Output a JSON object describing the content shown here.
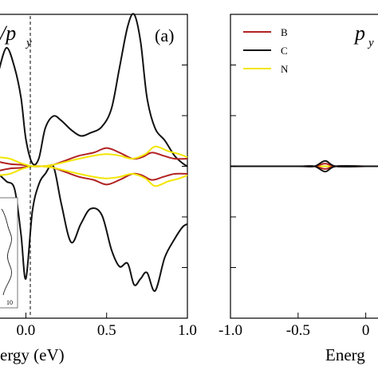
{
  "chart_data": [
    {
      "type": "line",
      "panel_label": "(a)",
      "orbital_label": "/p",
      "orbital_subscript": "y",
      "xlabel": "ergy (eV)",
      "xlim": [
        -0.17,
        1.0
      ],
      "ylim": [
        -1.0,
        1.0
      ],
      "x_ticks": [
        "0.0",
        "0.5",
        "1.0"
      ],
      "x_tick_values": [
        0.0,
        0.5,
        1.0
      ],
      "fermi_level_line": 0.0,
      "series": [
        {
          "name": "C",
          "color": "#111111",
          "x": [
            -0.17,
            -0.12,
            -0.07,
            -0.03,
            0.0,
            0.04,
            0.08,
            0.12,
            0.17,
            0.22,
            0.28,
            0.34,
            0.4,
            0.47,
            0.53,
            0.58,
            0.63,
            0.67,
            0.71,
            0.75,
            0.8,
            0.86,
            0.92,
            0.97,
            1.0
          ],
          "upper": [
            0.62,
            0.78,
            0.65,
            0.45,
            0.18,
            0.02,
            0.05,
            0.25,
            0.33,
            0.3,
            0.24,
            0.2,
            0.22,
            0.26,
            0.38,
            0.65,
            0.92,
            1.0,
            0.82,
            0.45,
            0.25,
            0.17,
            0.07,
            0.02,
            0.0
          ],
          "lower": [
            -0.05,
            -0.1,
            -0.15,
            -0.45,
            -0.74,
            -0.3,
            -0.12,
            -0.05,
            0.0,
            -0.25,
            -0.5,
            -0.38,
            -0.28,
            -0.32,
            -0.55,
            -0.66,
            -0.64,
            -0.78,
            -0.74,
            -0.7,
            -0.82,
            -0.6,
            -0.48,
            -0.4,
            -0.38
          ]
        },
        {
          "name": "B",
          "color": "#b22222",
          "x": [
            -0.17,
            -0.1,
            -0.03,
            0.04,
            0.1,
            0.17,
            0.25,
            0.33,
            0.42,
            0.5,
            0.58,
            0.66,
            0.72,
            0.78,
            0.85,
            0.92,
            1.0
          ],
          "upper": [
            0.03,
            0.015,
            0.01,
            0.0,
            0.0,
            0.01,
            0.04,
            0.07,
            0.09,
            0.12,
            0.09,
            0.05,
            0.06,
            0.09,
            0.07,
            0.05,
            0.05
          ],
          "lower": [
            -0.03,
            -0.015,
            -0.01,
            0.0,
            0.0,
            -0.01,
            -0.04,
            -0.07,
            -0.09,
            -0.12,
            -0.09,
            -0.05,
            -0.06,
            -0.09,
            -0.07,
            -0.05,
            -0.05
          ]
        },
        {
          "name": "N",
          "color": "#f2e600",
          "x": [
            -0.17,
            -0.1,
            -0.03,
            0.04,
            0.1,
            0.17,
            0.25,
            0.33,
            0.42,
            0.5,
            0.58,
            0.66,
            0.74,
            0.8,
            0.88,
            0.95,
            1.0
          ],
          "upper": [
            0.06,
            0.05,
            0.02,
            0.0,
            0.0,
            0.01,
            0.03,
            0.05,
            0.07,
            0.08,
            0.07,
            0.05,
            0.08,
            0.13,
            0.1,
            0.08,
            0.06
          ],
          "lower": [
            -0.06,
            -0.05,
            -0.02,
            0.0,
            0.0,
            -0.01,
            -0.03,
            -0.05,
            -0.07,
            -0.08,
            -0.07,
            -0.05,
            -0.08,
            -0.13,
            -0.1,
            -0.08,
            -0.06
          ]
        }
      ],
      "inset": {
        "tick_label": "10"
      }
    },
    {
      "type": "line",
      "orbital_label": "p",
      "orbital_subscript": "y",
      "xlabel": "Energ",
      "xlim": [
        -1.0,
        0.12
      ],
      "ylim": [
        -1.0,
        1.0
      ],
      "x_ticks": [
        "-1.0",
        "-0.5",
        "0"
      ],
      "x_tick_values": [
        -1.0,
        -0.5,
        0.0
      ],
      "legend": {
        "position": "top-left",
        "entries": [
          {
            "name": "B",
            "color": "#b22222"
          },
          {
            "name": "C",
            "color": "#111111"
          },
          {
            "name": "N",
            "color": "#f2e600"
          }
        ]
      },
      "series": [
        {
          "name": "N",
          "color": "#f2e600",
          "x": [
            -1.0,
            -0.5,
            -0.38,
            -0.3,
            -0.22,
            0.0,
            0.12
          ],
          "upper": [
            0.0,
            0.0,
            0.0,
            0.0,
            0.0,
            0.0,
            0.0
          ],
          "lower": [
            0.0,
            0.0,
            0.0,
            0.0,
            0.0,
            0.0,
            0.0
          ]
        },
        {
          "name": "B",
          "color": "#b22222",
          "x": [
            -1.0,
            -0.5,
            -0.38,
            -0.3,
            -0.22,
            0.0,
            0.12
          ],
          "upper": [
            0.0,
            0.0,
            0.0,
            0.018,
            0.0,
            0.0,
            0.0
          ],
          "lower": [
            0.0,
            0.0,
            0.0,
            -0.018,
            0.0,
            0.0,
            0.0
          ]
        },
        {
          "name": "C",
          "color": "#111111",
          "x": [
            -1.0,
            -0.5,
            -0.38,
            -0.3,
            -0.22,
            0.0,
            0.12
          ],
          "upper": [
            0.0,
            0.0,
            0.0,
            0.035,
            0.0,
            0.0,
            0.0
          ],
          "lower": [
            0.0,
            0.0,
            0.0,
            -0.035,
            0.0,
            0.0,
            0.0
          ]
        }
      ]
    }
  ]
}
